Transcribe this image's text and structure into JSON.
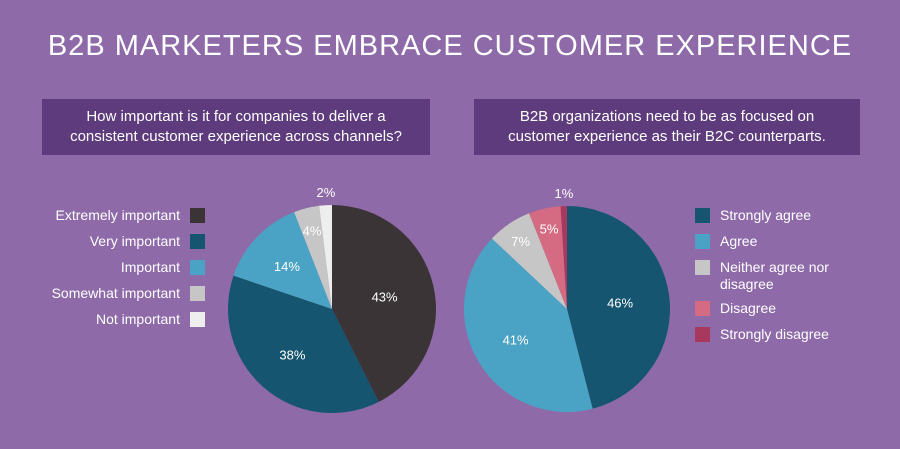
{
  "page": {
    "title": "B2B MARKETERS EMBRACE CUSTOMER EXPERIENCE"
  },
  "left_panel": {
    "question": "How important is it for companies to deliver a consistent customer experience across channels?"
  },
  "right_panel": {
    "question": "B2B organizations need to be as focused on customer experience as their B2C counterparts."
  },
  "chart_data": [
    {
      "type": "pie",
      "title": "How important is it for companies to deliver a consistent customer experience across channels?",
      "legend_position": "left",
      "categories": [
        "Extremely important",
        "Very important",
        "Important",
        "Somewhat important",
        "Not important"
      ],
      "values": [
        43,
        38,
        14,
        4,
        2
      ],
      "labels": [
        "43%",
        "38%",
        "14%",
        "4%",
        "2%"
      ],
      "colors": [
        "#3a3437",
        "#155570",
        "#4aa3c4",
        "#c6c6c6",
        "#eeeeee"
      ]
    },
    {
      "type": "pie",
      "title": "B2B organizations need to be as focused on customer experience as their B2C counterparts.",
      "legend_position": "right",
      "categories": [
        "Strongly agree",
        "Agree",
        "Neither agree nor disagree",
        "Disagree",
        "Strongly disagree"
      ],
      "values": [
        46,
        41,
        7,
        5,
        1
      ],
      "labels": [
        "46%",
        "41%",
        "7%",
        "5%",
        "1%"
      ],
      "colors": [
        "#155570",
        "#4aa3c4",
        "#c6c6c6",
        "#d56b83",
        "#a8385d"
      ]
    }
  ]
}
